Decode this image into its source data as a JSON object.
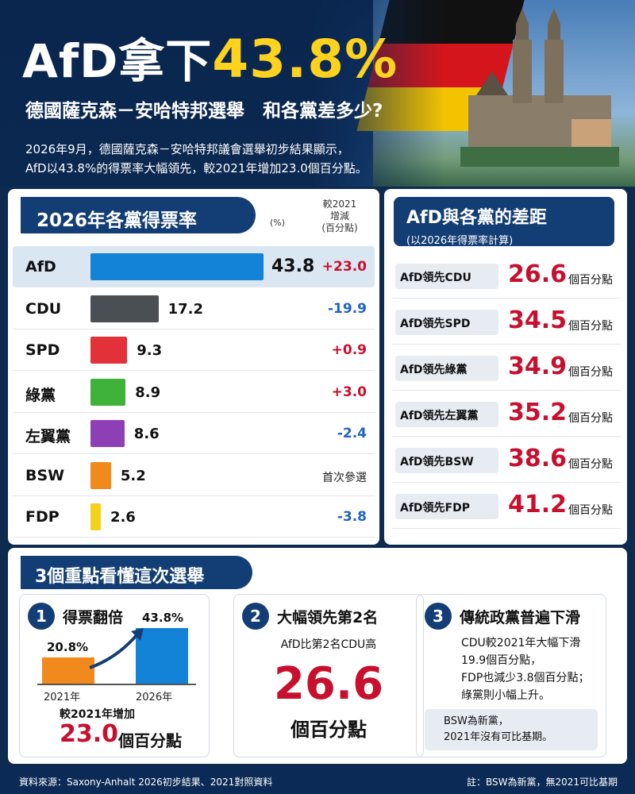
{
  "header": {
    "title_prefix": "AfD拿下",
    "title_pct": "43.8%",
    "subtitle": "德國薩克森－安哈特邦選舉　和各黨差多少?",
    "intro_line1": "2026年9月，德國薩克森－安哈特邦議會選舉初步結果顯示，",
    "intro_line2": "AfD以43.8%的得票率大幅領先，較2021年增加23.0個百分點。"
  },
  "left_panel": {
    "title": "2026年各黨得票率",
    "unit": "(%)",
    "change_header_1": "較2021",
    "change_header_2": "增減",
    "change_header_3": "(百分點)"
  },
  "chart_data": {
    "type": "bar",
    "title": "2026年各黨得票率",
    "xlim": [
      0,
      43.8
    ],
    "categories": [
      "AfD",
      "CDU",
      "SPD",
      "綠黨",
      "左翼黨",
      "BSW",
      "FDP"
    ],
    "values": [
      43.8,
      17.2,
      9.3,
      8.9,
      8.6,
      5.2,
      2.6
    ],
    "value_labels": [
      "43.8",
      "17.2",
      "9.3",
      "8.9",
      "8.6",
      "5.2",
      "2.6"
    ],
    "change_vs_2021": [
      "+23.0",
      "-19.9",
      "+0.9",
      "+3.0",
      "-2.4",
      "首次參選",
      "-3.8"
    ],
    "change_colors": [
      "#c8102e",
      "#1f63c4",
      "#c8102e",
      "#c8102e",
      "#1f63c4",
      "#222222",
      "#1f63c4"
    ],
    "colors": [
      "#1383d8",
      "#4a4f54",
      "#e3313a",
      "#3fb23a",
      "#8f3fb5",
      "#f08a1c",
      "#f5d21a"
    ]
  },
  "right_panel": {
    "title": "AfD與各黨的差距",
    "subtitle": "(以2026年得票率計算)",
    "unit": "個百分點",
    "gaps": [
      {
        "label": "AfD領先CDU",
        "value": "26.6"
      },
      {
        "label": "AfD領先SPD",
        "value": "34.5"
      },
      {
        "label": "AfD領先綠黨",
        "value": "34.9"
      },
      {
        "label": "AfD領先左翼黨",
        "value": "35.2"
      },
      {
        "label": "AfD領先BSW",
        "value": "38.6"
      },
      {
        "label": "AfD領先FDP",
        "value": "41.2"
      }
    ]
  },
  "key_points": {
    "title": "3個重點看懂這次選舉",
    "card1": {
      "num": "1",
      "title": "得票翻倍",
      "bar_2021_value": 20.8,
      "bar_2026_value": 43.8,
      "bar_2021_label": "20.8%",
      "bar_2026_label": "43.8%",
      "year_2021": "2021年",
      "year_2026": "2026年",
      "compare": "較2021年增加",
      "big": "23.0",
      "big_unit": "個百分點"
    },
    "card2": {
      "num": "2",
      "title": "大幅領先第2名",
      "sub": "AfD比第2名CDU高",
      "big": "26.6",
      "big_unit": "個百分點"
    },
    "card3": {
      "num": "3",
      "title": "傳統政黨普遍下滑",
      "line1": "CDU較2021年大幅下滑",
      "line2": "19.9個百分點，",
      "line3": "FDP也減少3.8個百分點；",
      "line4": "綠黨則小幅上升。",
      "note1": "BSW為新黨，",
      "note2": "2021年沒有可比基期。"
    }
  },
  "footer": {
    "source": "資料來源：Saxony-Anhalt 2026初步結果、2021對照資料",
    "note": "註：BSW為新黨，無2021可比基期"
  }
}
